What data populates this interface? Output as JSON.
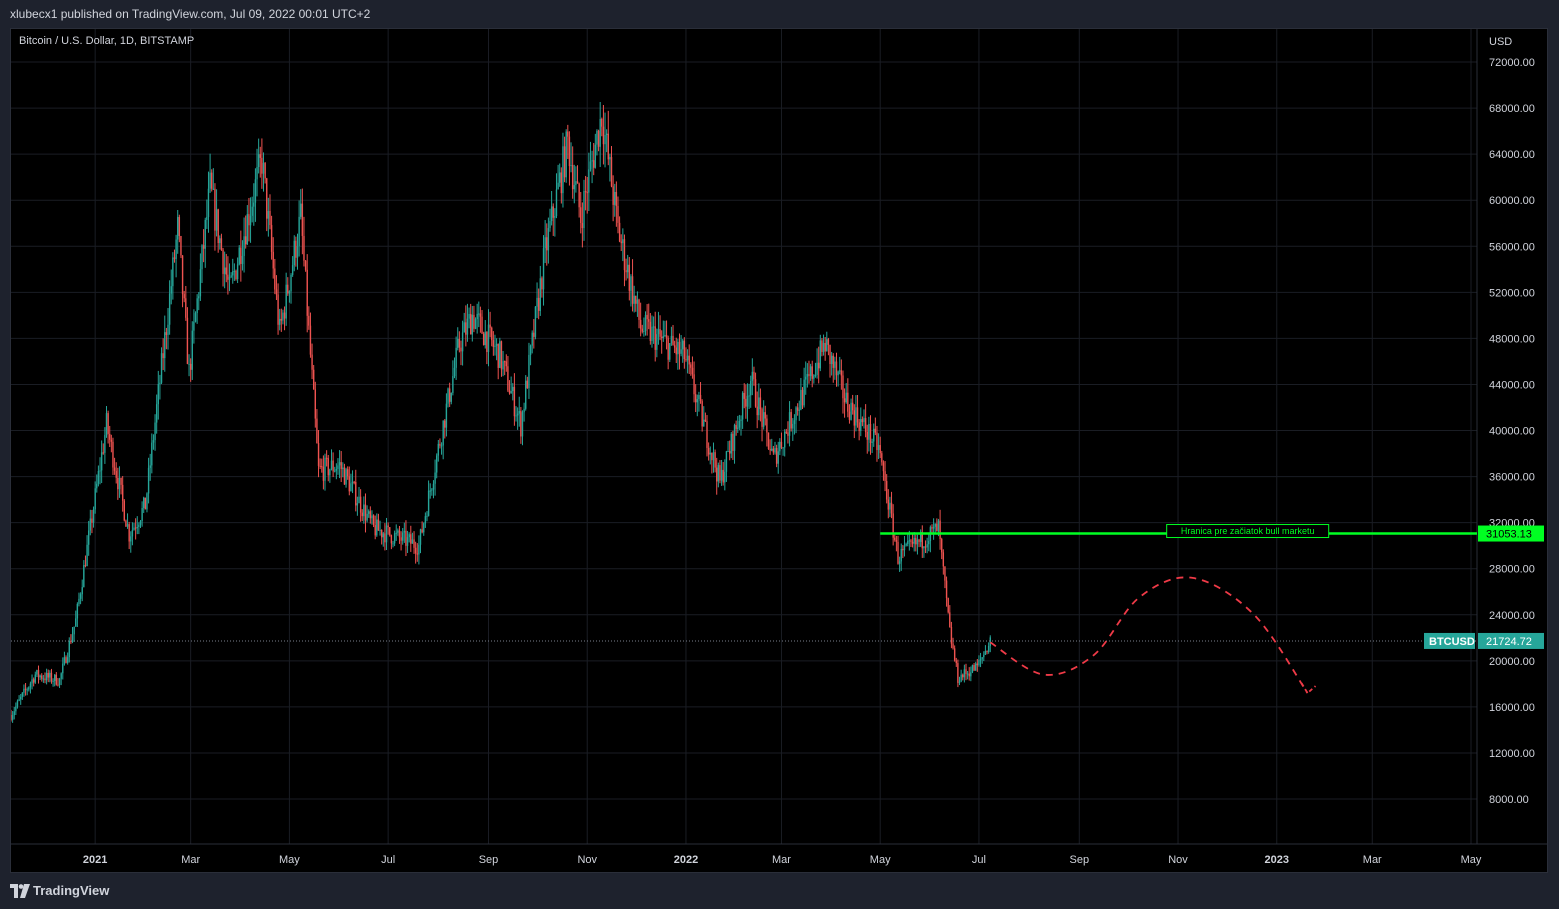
{
  "header": {
    "publish_text": "xlubecx1 published on TradingView.com, Jul 09, 2022 00:01 UTC+2"
  },
  "symbol": {
    "title": "Bitcoin / U.S. Dollar, 1D, BITSTAMP",
    "ticker": "BTCUSD",
    "currency": "USD"
  },
  "footer": {
    "brand": "TradingView"
  },
  "colors": {
    "up": "#26a69a",
    "down": "#ef5350",
    "level_line": "#00ff22",
    "price_badge": "#26a69a",
    "projection": "#ef3a47",
    "background": "#000000",
    "grid": "#1a1d24"
  },
  "chart_data": {
    "type": "candlestick",
    "title": "Bitcoin / U.S. Dollar, 1D, BITSTAMP",
    "yaxis": {
      "ylim": [
        4000,
        75000
      ],
      "ticks": [
        8000,
        12000,
        16000,
        20000,
        24000,
        28000,
        32000,
        36000,
        40000,
        44000,
        48000,
        52000,
        56000,
        60000,
        64000,
        68000,
        72000
      ],
      "tick_labels": [
        "8000.00",
        "12000.00",
        "16000.00",
        "20000.00",
        "24000.00",
        "28000.00",
        "32000.00",
        "36000.00",
        "40000.00",
        "44000.00",
        "48000.00",
        "52000.00",
        "56000.00",
        "60000.00",
        "64000.00",
        "68000.00",
        "72000.00"
      ]
    },
    "xaxis": {
      "range": [
        "2020-11-10",
        "2023-05-10"
      ],
      "ticks": [
        {
          "date": "2021-01-01",
          "label": "2021",
          "bold": true
        },
        {
          "date": "2021-03-01",
          "label": "Mar"
        },
        {
          "date": "2021-05-01",
          "label": "May"
        },
        {
          "date": "2021-07-01",
          "label": "Jul"
        },
        {
          "date": "2021-09-01",
          "label": "Sep"
        },
        {
          "date": "2021-11-01",
          "label": "Nov"
        },
        {
          "date": "2022-01-01",
          "label": "2022",
          "bold": true
        },
        {
          "date": "2022-03-01",
          "label": "Mar"
        },
        {
          "date": "2022-05-01",
          "label": "May"
        },
        {
          "date": "2022-07-01",
          "label": "Jul"
        },
        {
          "date": "2022-09-01",
          "label": "Sep"
        },
        {
          "date": "2022-11-01",
          "label": "Nov"
        },
        {
          "date": "2023-01-01",
          "label": "2023",
          "bold": true
        },
        {
          "date": "2023-03-01",
          "label": "Mar"
        },
        {
          "date": "2023-05-01",
          "label": "May"
        }
      ]
    },
    "price_path": [
      [
        "2020-11-10",
        15300
      ],
      [
        "2020-11-25",
        18800
      ],
      [
        "2020-12-10",
        18300
      ],
      [
        "2020-12-20",
        23500
      ],
      [
        "2021-01-08",
        40500
      ],
      [
        "2021-01-22",
        31000
      ],
      [
        "2021-02-01",
        33500
      ],
      [
        "2021-02-21",
        57500
      ],
      [
        "2021-02-28",
        45000
      ],
      [
        "2021-03-13",
        61000
      ],
      [
        "2021-03-25",
        52000
      ],
      [
        "2021-04-14",
        63500
      ],
      [
        "2021-04-25",
        48500
      ],
      [
        "2021-05-08",
        58500
      ],
      [
        "2021-05-19",
        36500
      ],
      [
        "2021-06-01",
        37000
      ],
      [
        "2021-06-22",
        31500
      ],
      [
        "2021-07-20",
        30000
      ],
      [
        "2021-08-14",
        47500
      ],
      [
        "2021-08-22",
        50000
      ],
      [
        "2021-09-08",
        46500
      ],
      [
        "2021-09-21",
        40500
      ],
      [
        "2021-10-06",
        55500
      ],
      [
        "2021-10-20",
        65000
      ],
      [
        "2021-10-28",
        58500
      ],
      [
        "2021-11-10",
        67500
      ],
      [
        "2021-11-20",
        57500
      ],
      [
        "2021-12-04",
        49000
      ],
      [
        "2021-12-31",
        46500
      ],
      [
        "2022-01-22",
        35500
      ],
      [
        "2022-02-10",
        44500
      ],
      [
        "2022-02-24",
        37500
      ],
      [
        "2022-03-28",
        47500
      ],
      [
        "2022-04-10",
        42500
      ],
      [
        "2022-04-30",
        38500
      ],
      [
        "2022-05-12",
        29000
      ],
      [
        "2022-06-06",
        31500
      ],
      [
        "2022-06-13",
        22500
      ],
      [
        "2022-06-18",
        18500
      ],
      [
        "2022-06-30",
        19500
      ],
      [
        "2022-07-08",
        21724.72
      ]
    ],
    "last_price": {
      "value": 21724.72,
      "label": "21724.72",
      "ticker": "BTCUSD"
    },
    "level": {
      "value": 31053.13,
      "label": "31053.13",
      "start_date": "2022-05-01",
      "annotation": "Hranica pre začiatok bull marketu"
    },
    "projection": {
      "style": "dashed",
      "points": [
        [
          "2022-07-08",
          21600
        ],
        [
          "2022-08-10",
          18800
        ],
        [
          "2022-09-10",
          20500
        ],
        [
          "2022-10-08",
          25500
        ],
        [
          "2022-11-10",
          27200
        ],
        [
          "2022-12-18",
          24000
        ],
        [
          "2023-01-20",
          17200
        ]
      ],
      "arrow": "down"
    }
  }
}
